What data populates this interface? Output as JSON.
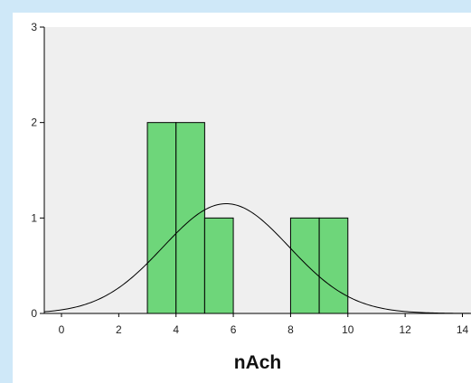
{
  "chart_data": {
    "type": "bar",
    "title": "",
    "xlabel": "nAch",
    "ylabel": "",
    "xlim": [
      -0.6,
      14.3
    ],
    "ylim": [
      0,
      3
    ],
    "x_ticks": [
      0,
      2,
      4,
      6,
      8,
      10,
      12,
      14
    ],
    "y_ticks": [
      0,
      1,
      2,
      3
    ],
    "bins": [
      {
        "start": 3,
        "end": 4,
        "count": 2
      },
      {
        "start": 4,
        "end": 5,
        "count": 2
      },
      {
        "start": 5,
        "end": 6,
        "count": 1
      },
      {
        "start": 6,
        "end": 7,
        "count": 0
      },
      {
        "start": 7,
        "end": 8,
        "count": 0
      },
      {
        "start": 8,
        "end": 9,
        "count": 1
      },
      {
        "start": 9,
        "end": 10,
        "count": 1
      }
    ],
    "normal_curve": {
      "mean": 5.75,
      "sd": 2.2,
      "peak": 1.15
    },
    "bar_color": "#6ed67a",
    "plot_background": "#efefef",
    "grid": false,
    "legend": "none"
  }
}
